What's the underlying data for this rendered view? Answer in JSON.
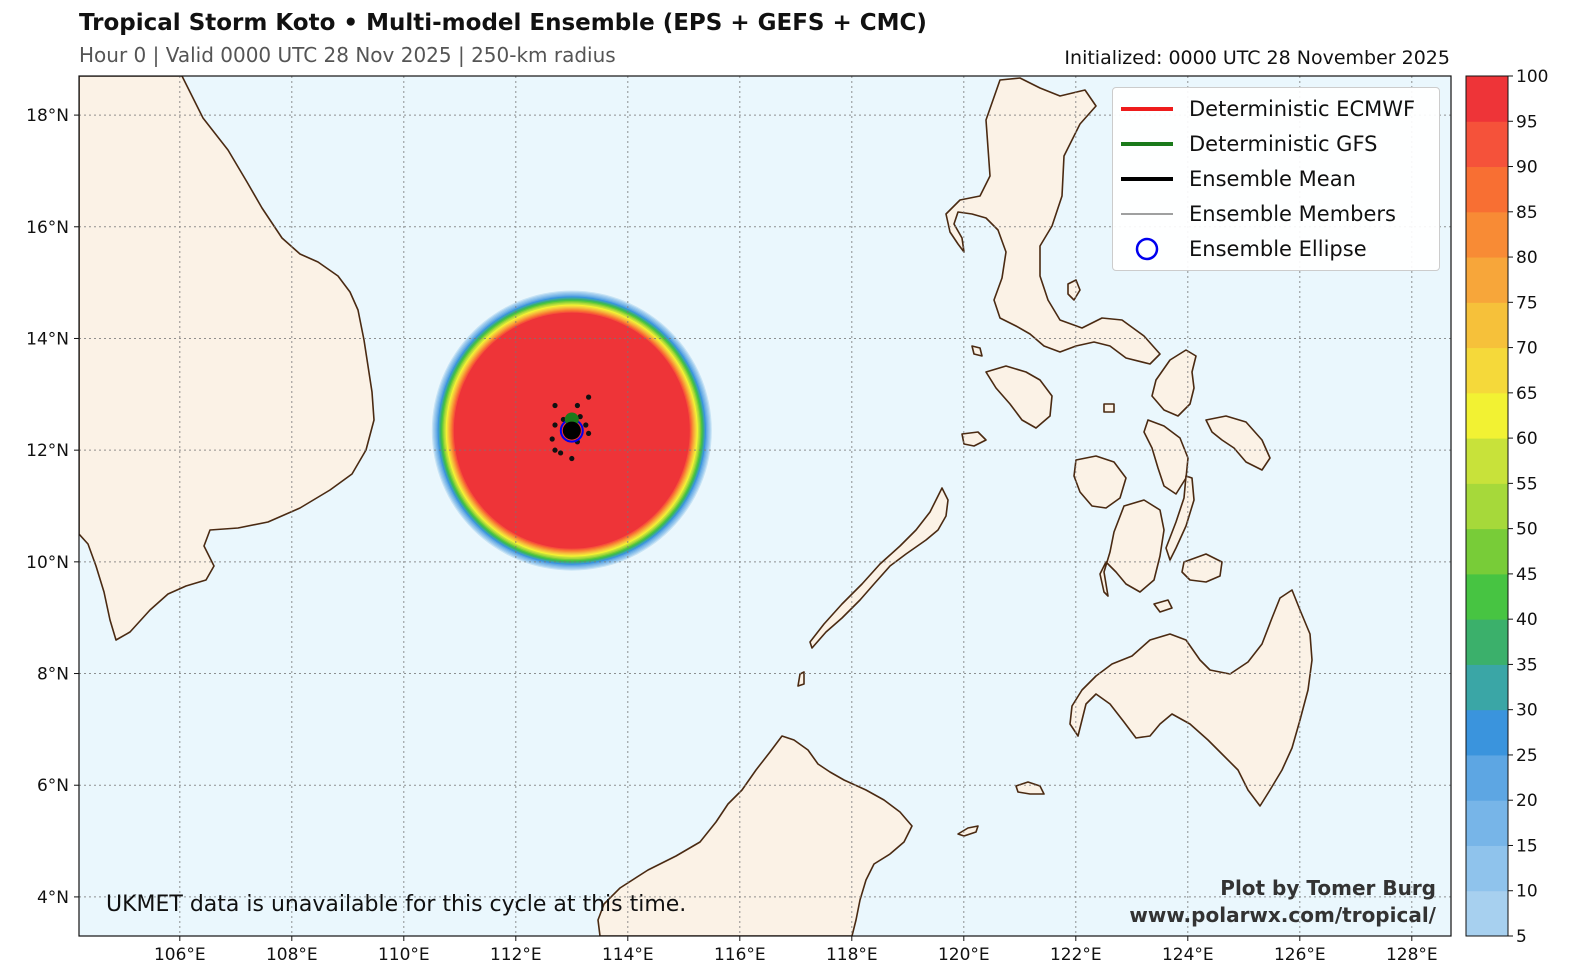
{
  "header": {
    "title": "Tropical Storm Koto • Multi-model Ensemble (EPS + GEFS + CMC)",
    "subtitle": "Hour 0 | Valid 0000 UTC 28 Nov 2025 | 250-km radius",
    "initialized": "Initialized: 0000 UTC 28 November 2025"
  },
  "map": {
    "lon_range": [
      104.2,
      128.7
    ],
    "lat_range": [
      3.3,
      18.7
    ],
    "lon_ticks": [
      106,
      108,
      110,
      112,
      114,
      116,
      118,
      120,
      122,
      124,
      126,
      128
    ],
    "lon_tick_labels": [
      "106°E",
      "108°E",
      "110°E",
      "112°E",
      "114°E",
      "116°E",
      "118°E",
      "120°E",
      "122°E",
      "124°E",
      "126°E",
      "128°E"
    ],
    "lat_ticks": [
      4,
      6,
      8,
      10,
      12,
      14,
      16,
      18
    ],
    "lat_tick_labels": [
      "4°N",
      "6°N",
      "8°N",
      "10°N",
      "12°N",
      "14°N",
      "16°N",
      "18°N"
    ],
    "grid": true,
    "ocean_color": "#eaf7fd",
    "land_color": "#fbf2e6",
    "coast_color": "#4a2a12",
    "storm_center": {
      "lon": 113.0,
      "lat": 12.35
    },
    "probability_max": 100,
    "member_positions": [
      [
        112.7,
        12.8
      ],
      [
        113.1,
        12.8
      ],
      [
        113.3,
        12.95
      ],
      [
        112.7,
        12.45
      ],
      [
        112.65,
        12.2
      ],
      [
        112.7,
        12.0
      ],
      [
        112.8,
        11.95
      ],
      [
        113.0,
        11.85
      ],
      [
        113.3,
        12.3
      ],
      [
        113.25,
        12.45
      ],
      [
        112.85,
        12.55
      ],
      [
        113.15,
        12.6
      ],
      [
        112.95,
        12.25
      ],
      [
        113.1,
        12.15
      ]
    ],
    "ecmwf_position": [
      113.0,
      12.4
    ],
    "gfs_position": [
      113.0,
      12.55
    ],
    "ensemble_mean_position": [
      113.0,
      12.35
    ]
  },
  "colorbar": {
    "levels": [
      5,
      10,
      15,
      20,
      25,
      30,
      35,
      40,
      45,
      50,
      55,
      60,
      65,
      70,
      75,
      80,
      85,
      90,
      95,
      100
    ],
    "colors": [
      "#c6e3f5",
      "#a7d0ef",
      "#8fc3ec",
      "#77b5e8",
      "#5da6e3",
      "#3a94dd",
      "#3aa6a6",
      "#3bb06b",
      "#47c442",
      "#78cc38",
      "#a6d93a",
      "#c8e23a",
      "#f2f233",
      "#f5d93a",
      "#f6c13a",
      "#f7a63a",
      "#f88b35",
      "#f86f33",
      "#f5523a",
      "#ee3438"
    ],
    "tick_labels": [
      "5",
      "10",
      "15",
      "20",
      "25",
      "30",
      "35",
      "40",
      "45",
      "50",
      "55",
      "60",
      "65",
      "70",
      "75",
      "80",
      "85",
      "90",
      "95",
      "100"
    ]
  },
  "legend": {
    "items": [
      {
        "label": "Deterministic ECMWF",
        "color": "#ee1c1c",
        "style": "line-thick"
      },
      {
        "label": "Deterministic GFS",
        "color": "#1a7a1a",
        "style": "line-thick"
      },
      {
        "label": "Ensemble Mean",
        "color": "#000000",
        "style": "line-thick"
      },
      {
        "label": "Ensemble Members",
        "color": "#000000",
        "style": "line-thin"
      },
      {
        "label": "Ensemble Ellipse",
        "color": "#0000ee",
        "style": "circle"
      }
    ]
  },
  "annotations": {
    "note": "UKMET data is unavailable for this cycle at this time.",
    "credit_line1": "Plot by Tomer Burg",
    "credit_line2": "www.polarwx.com/tropical/"
  }
}
